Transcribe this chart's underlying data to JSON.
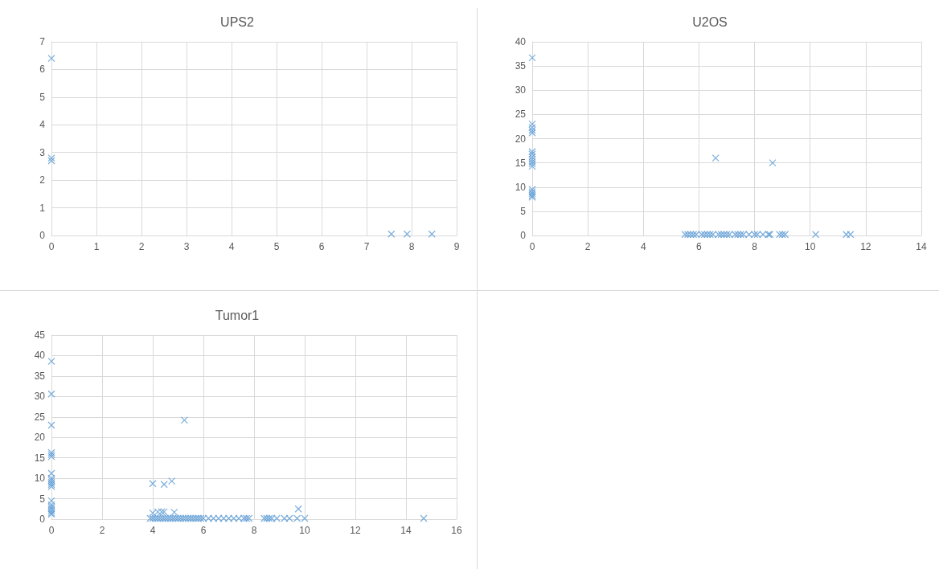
{
  "chart_data": [
    {
      "type": "scatter",
      "title": "UPS2",
      "marker": "cross",
      "grid": true,
      "xlim": [
        0,
        9
      ],
      "xticks": [
        0,
        1,
        2,
        3,
        4,
        5,
        6,
        7,
        8,
        9
      ],
      "ylim": [
        0,
        7
      ],
      "yticks": [
        0,
        1,
        2,
        3,
        4,
        5,
        6,
        7
      ],
      "series": [
        {
          "color": "#5b9bd5",
          "x": [
            0,
            0,
            0,
            7.55,
            7.9,
            8.45
          ],
          "values": [
            6.4,
            2.8,
            2.7,
            0.05,
            0.05,
            0.05
          ]
        }
      ]
    },
    {
      "type": "scatter",
      "title": "U2OS",
      "marker": "cross",
      "grid": true,
      "xlim": [
        0,
        14
      ],
      "xticks": [
        0,
        2,
        4,
        6,
        8,
        10,
        12,
        14
      ],
      "ylim": [
        0,
        40
      ],
      "yticks": [
        0,
        5,
        10,
        15,
        20,
        25,
        30,
        35,
        40
      ],
      "series": [
        {
          "color": "#5b9bd5",
          "x": [
            0,
            0,
            0,
            0,
            0,
            0,
            0,
            0,
            0,
            0,
            0,
            0,
            0,
            0,
            0,
            0,
            0,
            6.6,
            8.65,
            5.5,
            5.6,
            5.7,
            5.8,
            5.9,
            6.1,
            6.2,
            6.3,
            6.4,
            6.5,
            6.7,
            6.8,
            6.9,
            7.0,
            7.1,
            7.3,
            7.4,
            7.5,
            7.6,
            7.8,
            8.0,
            8.1,
            8.3,
            8.5,
            8.55,
            8.9,
            9.0,
            9.1,
            10.2,
            11.3,
            11.45
          ],
          "values": [
            36.7,
            23,
            22.3,
            21.7,
            21.2,
            17.3,
            16.8,
            16.2,
            15.7,
            15.2,
            14.8,
            14.3,
            9.5,
            9.0,
            8.6,
            8.2,
            7.9,
            16,
            15,
            0.2,
            0.2,
            0.2,
            0.2,
            0.2,
            0.2,
            0.2,
            0.2,
            0.2,
            0.2,
            0.2,
            0.2,
            0.2,
            0.2,
            0.2,
            0.2,
            0.2,
            0.2,
            0.2,
            0.2,
            0.2,
            0.2,
            0.2,
            0.2,
            0.2,
            0.2,
            0.2,
            0.2,
            0.2,
            0.2,
            0.2
          ]
        }
      ]
    },
    {
      "type": "scatter",
      "title": "Tumor1",
      "marker": "cross",
      "grid": true,
      "xlim": [
        0,
        16
      ],
      "xticks": [
        0,
        2,
        4,
        6,
        8,
        10,
        12,
        14,
        16
      ],
      "ylim": [
        0,
        45
      ],
      "yticks": [
        0,
        5,
        10,
        15,
        20,
        25,
        30,
        35,
        40,
        45
      ],
      "series": [
        {
          "color": "#5b9bd5",
          "x": [
            0,
            0,
            0,
            0,
            0,
            0,
            0,
            0,
            0,
            0,
            0,
            0,
            0,
            0,
            0,
            0,
            0,
            0,
            0,
            4,
            4.45,
            4.75,
            5.25,
            4,
            4.2,
            4.35,
            4.45,
            4.85,
            9.75,
            3.9,
            4.0,
            4.1,
            4.2,
            4.3,
            4.4,
            4.5,
            4.6,
            4.7,
            4.8,
            4.9,
            5.0,
            5.1,
            5.2,
            5.3,
            5.4,
            5.5,
            5.6,
            5.7,
            5.8,
            5.9,
            6.0,
            6.2,
            6.4,
            6.6,
            6.8,
            7.0,
            7.2,
            7.4,
            7.6,
            7.7,
            7.8,
            8.4,
            8.5,
            8.6,
            8.7,
            8.9,
            9.2,
            9.4,
            9.7,
            10.0,
            14.7
          ],
          "values": [
            38.6,
            30.6,
            23,
            16.3,
            15.8,
            15.3,
            11.2,
            10,
            9.5,
            9,
            8.5,
            8.0,
            4.5,
            3.5,
            3,
            2.5,
            2,
            1.5,
            1.2,
            8.7,
            8.5,
            9.3,
            24.2,
            1.5,
            1.8,
            1.8,
            1.8,
            1.7,
            2.5,
            0.2,
            0.2,
            0.2,
            0.2,
            0.2,
            0.2,
            0.2,
            0.2,
            0.2,
            0.2,
            0.2,
            0.2,
            0.2,
            0.2,
            0.2,
            0.2,
            0.2,
            0.2,
            0.2,
            0.2,
            0.2,
            0.2,
            0.2,
            0.2,
            0.2,
            0.2,
            0.2,
            0.2,
            0.2,
            0.2,
            0.2,
            0.2,
            0.2,
            0.2,
            0.2,
            0.2,
            0.2,
            0.2,
            0.2,
            0.2,
            0.2,
            0.2
          ]
        }
      ]
    }
  ]
}
